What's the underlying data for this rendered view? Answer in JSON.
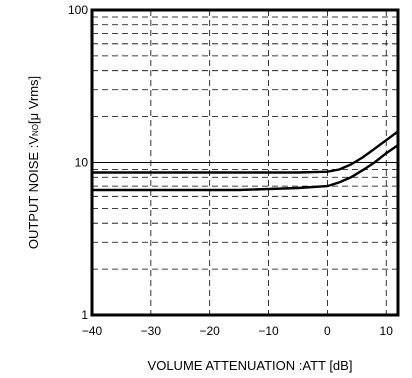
{
  "chart_data": {
    "type": "line",
    "title": "",
    "xlabel": "VOLUME ATTENUATION :ATT [dB]",
    "ylabel": {
      "prefix": "OUTPUT NOISE :V",
      "subscript": "NO",
      "suffix": "[μ Vrms]"
    },
    "xlim": [
      -40,
      12
    ],
    "ylim": [
      1,
      100
    ],
    "yscale": "log",
    "grid": true,
    "legend": "none",
    "x_ticks": [
      -40,
      -30,
      -20,
      -10,
      0,
      10
    ],
    "x_tick_labels": [
      "−40",
      "−30",
      "−20",
      "−10",
      "0",
      "10"
    ],
    "y_ticks": [
      1,
      10,
      100
    ],
    "y_tick_labels": [
      "1",
      "10",
      "100"
    ],
    "series": [
      {
        "x": [
          -40,
          -35,
          -30,
          -25,
          -20,
          -15,
          -10,
          -5,
          0,
          2,
          4,
          6,
          8,
          10,
          12
        ],
        "values": [
          8.6,
          8.6,
          8.6,
          8.6,
          8.6,
          8.6,
          8.6,
          8.6,
          8.7,
          9.0,
          9.7,
          10.8,
          12.3,
          14.0,
          16.0
        ]
      },
      {
        "x": [
          -40,
          -35,
          -30,
          -25,
          -20,
          -15,
          -10,
          -5,
          0,
          2,
          4,
          6,
          8,
          10,
          12
        ],
        "values": [
          6.6,
          6.6,
          6.6,
          6.6,
          6.6,
          6.6,
          6.7,
          6.8,
          7.0,
          7.4,
          8.0,
          8.9,
          10.0,
          11.5,
          13.0
        ]
      }
    ]
  }
}
